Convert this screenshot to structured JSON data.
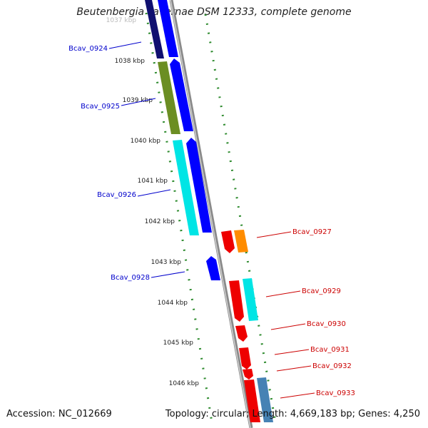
{
  "title": "Beutenbergia cavernae DSM 12333, complete genome",
  "accession": "Accession: NC_012669",
  "summary": "Topology: circular; Length: 4,669,183 bp; Genes: 4,250",
  "ticks": [
    "1037 kbp",
    "1038 kbp",
    "1039 kbp",
    "1040 kbp",
    "1041 kbp",
    "1042 kbp",
    "1043 kbp",
    "1044 kbp",
    "1045 kbp",
    "1046 kbp"
  ],
  "genes_left": [
    "Bcav_0924",
    "Bcav_0925",
    "Bcav_0926",
    "Bcav_0928"
  ],
  "genes_right": [
    "Bcav_0927",
    "Bcav_0929",
    "Bcav_0930",
    "Bcav_0931",
    "Bcav_0932",
    "Bcav_0933"
  ],
  "colors": {
    "label_left": "#0000cc",
    "label_right": "#cc0000",
    "tick": "#2e8b2e",
    "backbone": "#888888",
    "navy": "#101070",
    "blue": "#0000ff",
    "olive": "#6b8e23",
    "cyan": "#00e5e5",
    "red": "#ee0000",
    "orange": "#ff8c00",
    "steel": "#4682b4"
  }
}
